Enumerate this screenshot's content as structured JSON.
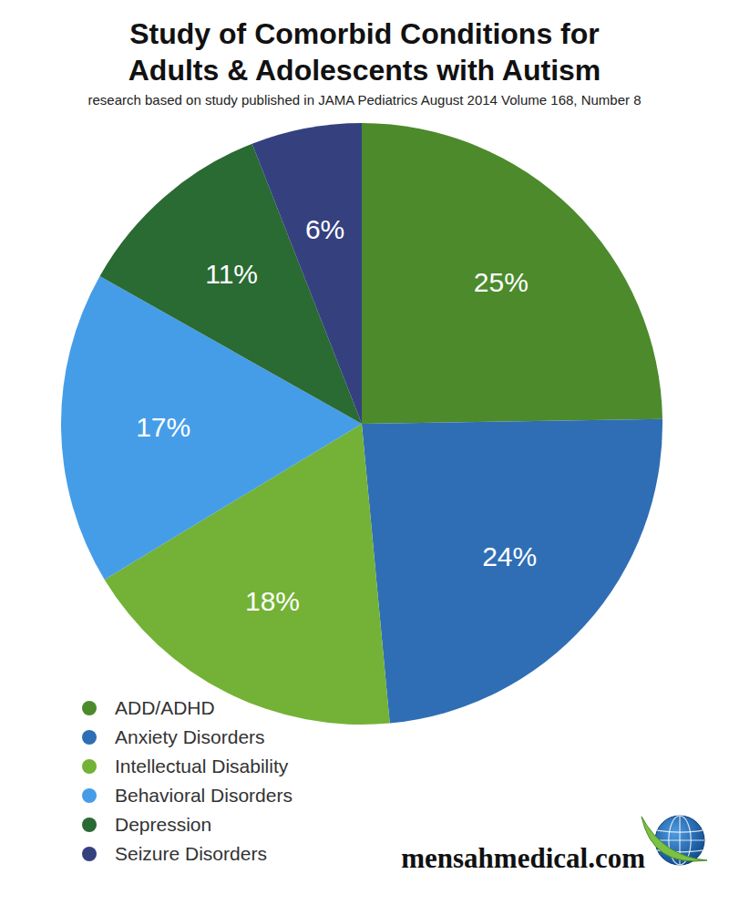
{
  "chart_data": {
    "type": "pie",
    "title": "Study of Comorbid Conditions for Adults & Adolescents with Autism",
    "subtitle": "research based on study published in JAMA Pediatrics August 2014 Volume 168, Number 8",
    "categories": [
      "ADD/ADHD",
      "Anxiety Disorders",
      "Intellectual Disability",
      "Behavioral Disorders",
      "Depression",
      "Seizure Disorders"
    ],
    "values": [
      25,
      24,
      18,
      17,
      11,
      6
    ],
    "value_labels": [
      "25%",
      "24%",
      "18%",
      "17%",
      "11%",
      "6%"
    ],
    "colors": [
      "#4c8a2c",
      "#2f6eb5",
      "#73b236",
      "#459de8",
      "#2a6a33",
      "#35417f"
    ],
    "data_labels": true,
    "legend": "bottom-left",
    "annotations": [
      "mensahmedical.com"
    ]
  }
}
